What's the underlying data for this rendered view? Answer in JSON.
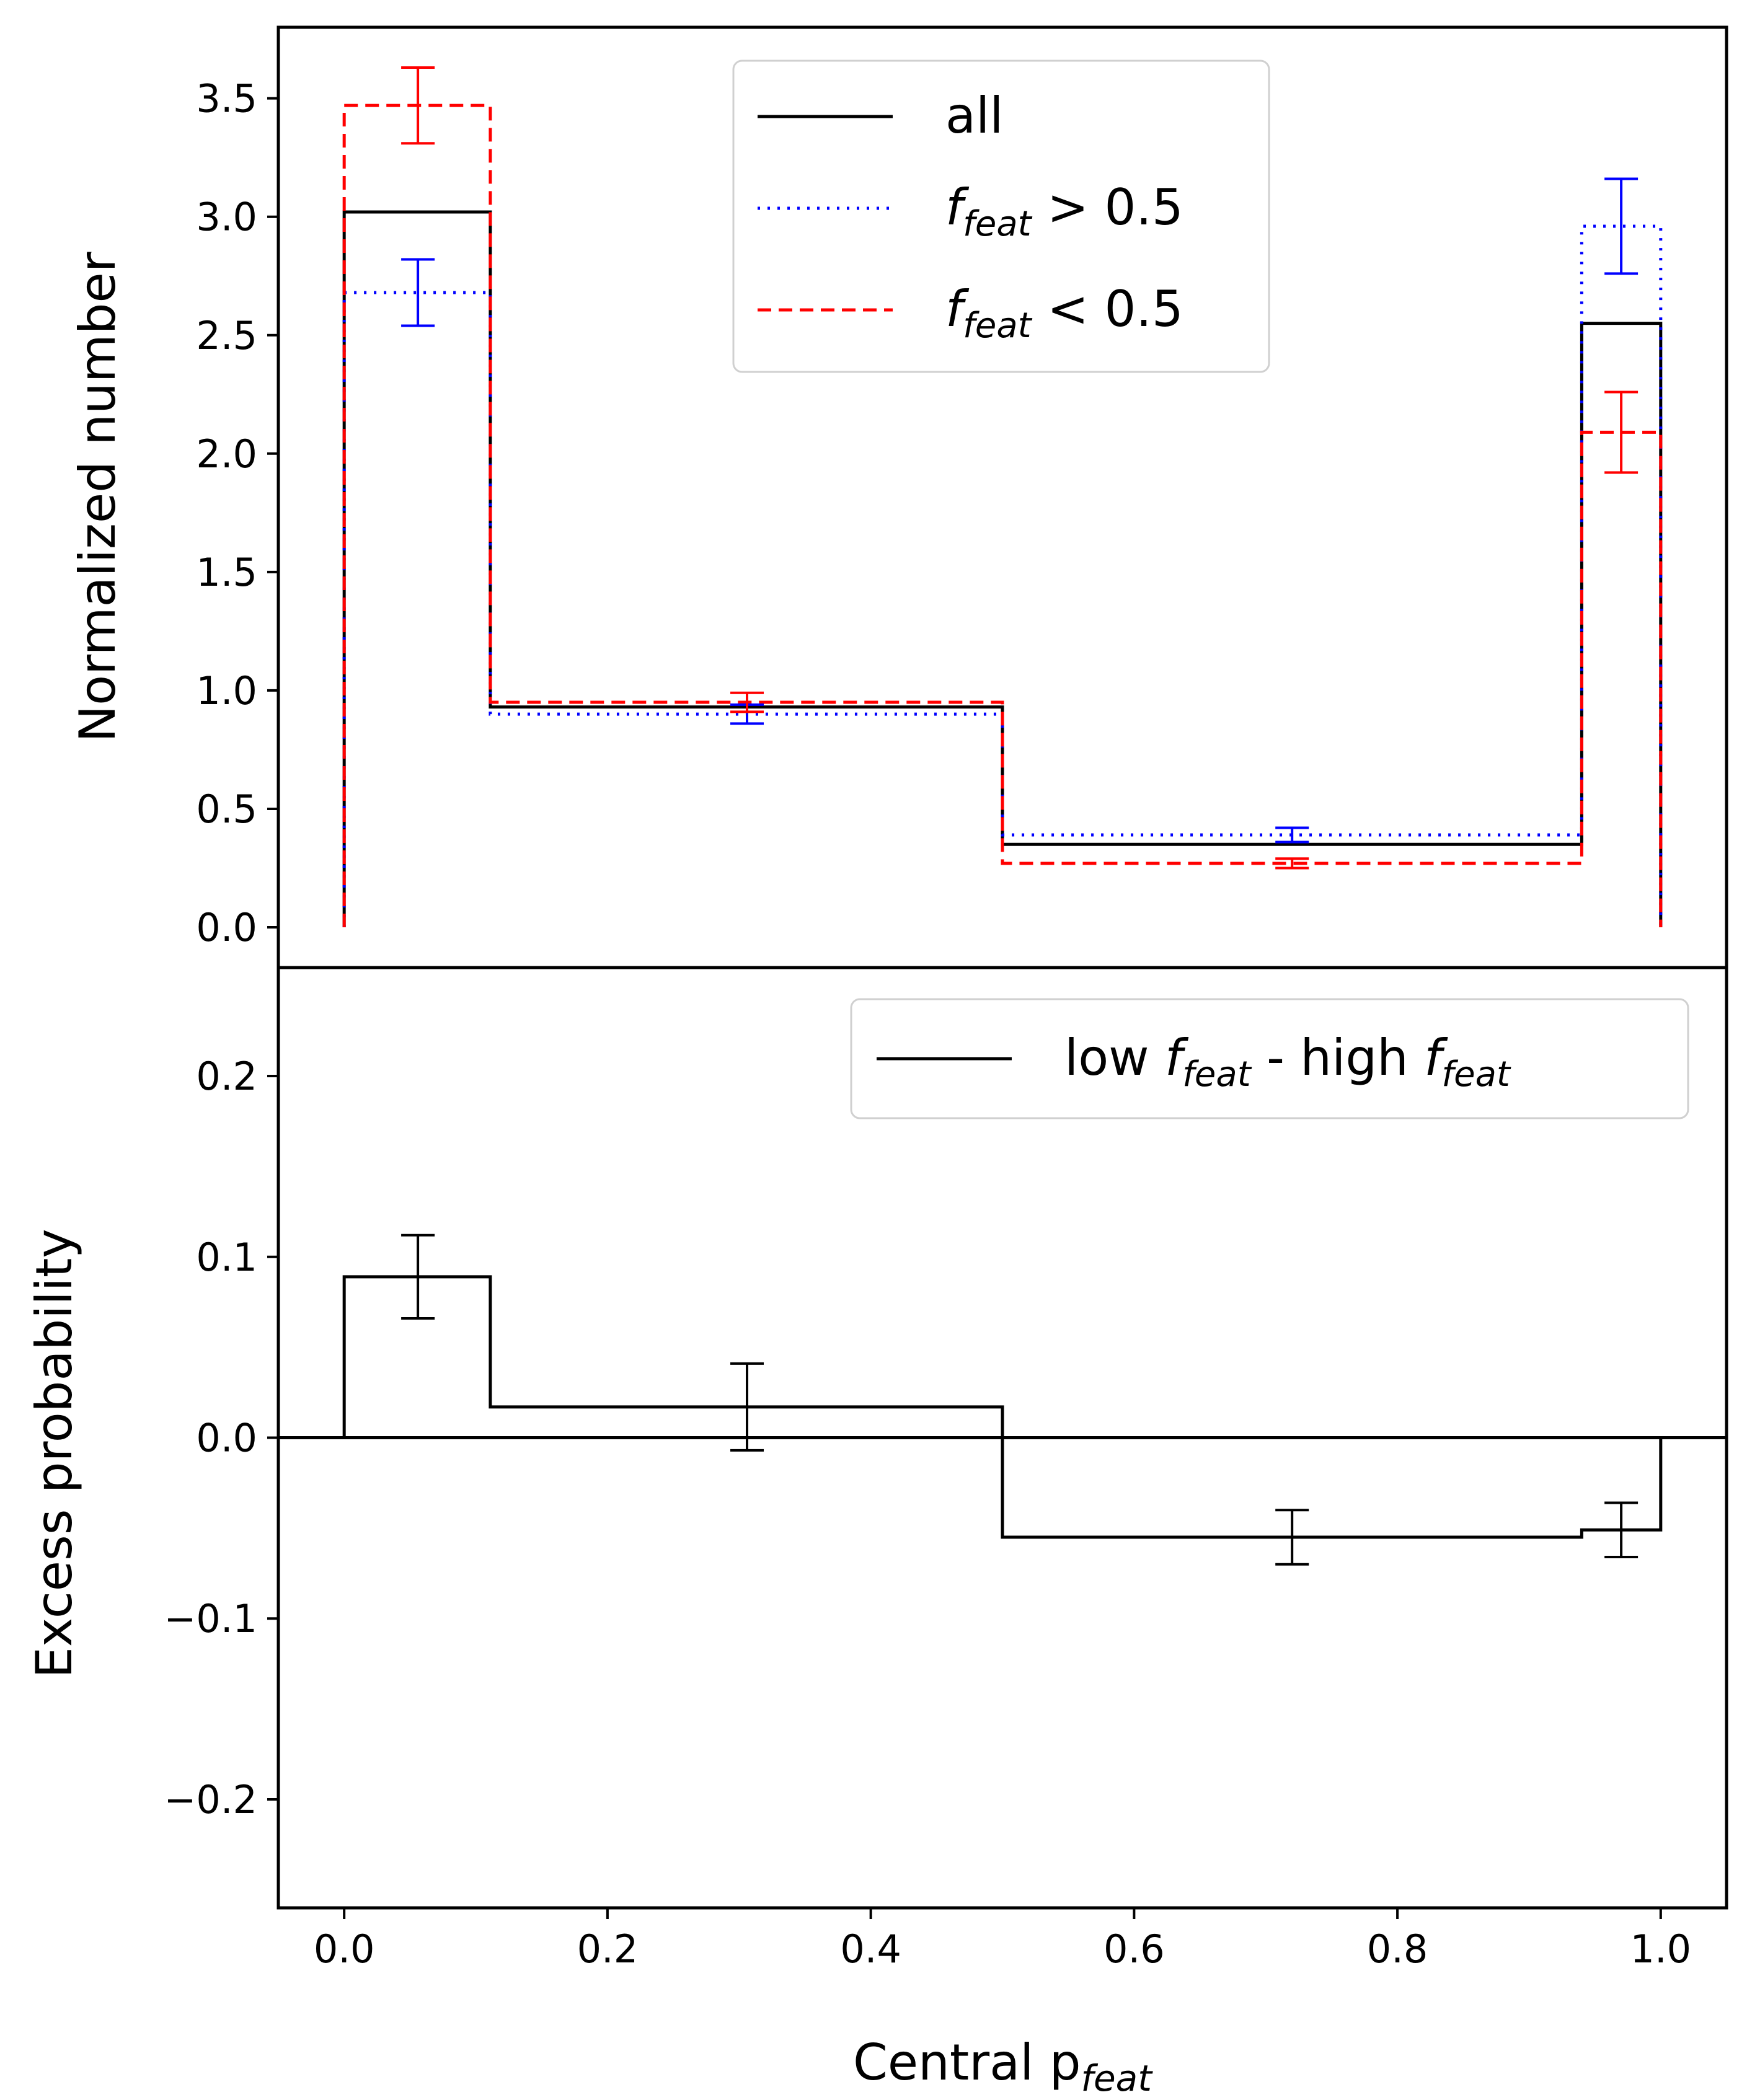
{
  "chart_data": [
    {
      "type": "step",
      "panel": "top",
      "ylabel": "Normalized number",
      "ylim": [
        -0.17,
        3.8
      ],
      "yticks": [
        "0.0",
        "0.5",
        "1.0",
        "1.5",
        "2.0",
        "2.5",
        "3.0",
        "3.5"
      ],
      "ytick_values": [
        0.0,
        0.5,
        1.0,
        1.5,
        2.0,
        2.5,
        3.0,
        3.5
      ],
      "bin_edges": [
        0.0,
        0.111,
        0.5,
        0.94,
        1.0
      ],
      "bin_centers": [
        0.056,
        0.306,
        0.72,
        0.97
      ],
      "legend_position": "upper-center",
      "series": [
        {
          "key": "all",
          "name": "all",
          "color": "#000000",
          "style": "solid",
          "values": [
            3.02,
            0.93,
            0.35,
            2.55
          ],
          "errors": null
        },
        {
          "key": "high",
          "name_base": "f",
          "name_sub": "feat",
          "name_tail": " > 0.5",
          "color": "#0000ff",
          "style": "dotted",
          "values": [
            2.68,
            0.9,
            0.39,
            2.96
          ],
          "errors": [
            0.14,
            0.04,
            0.03,
            0.2
          ]
        },
        {
          "key": "low",
          "name_base": "f",
          "name_sub": "feat",
          "name_tail": " < 0.5",
          "color": "#ff0000",
          "style": "dashed",
          "values": [
            3.47,
            0.95,
            0.27,
            2.09
          ],
          "errors": [
            0.16,
            0.04,
            0.02,
            0.17
          ]
        }
      ]
    },
    {
      "type": "step",
      "panel": "bottom",
      "ylabel": "Excess probability",
      "xlabel_base": "Central p",
      "xlabel_sub": "feat",
      "ylim": [
        -0.26,
        0.26
      ],
      "yticks": [
        "0.2",
        "0.1",
        "0.0",
        "−0.1",
        "−0.2"
      ],
      "ytick_values": [
        0.2,
        0.1,
        0.0,
        -0.1,
        -0.2
      ],
      "xticks": [
        "0.0",
        "0.2",
        "0.4",
        "0.6",
        "0.8",
        "1.0"
      ],
      "xtick_values": [
        0.0,
        0.2,
        0.4,
        0.6,
        0.8,
        1.0
      ],
      "xlim": [
        -0.05,
        1.05
      ],
      "bin_edges": [
        0.0,
        0.111,
        0.5,
        0.94,
        1.0
      ],
      "bin_centers": [
        0.056,
        0.306,
        0.72,
        0.97
      ],
      "zero_line": true,
      "legend_position": "upper-right",
      "series": [
        {
          "key": "diff",
          "name_pre": "low ",
          "name_base": "f",
          "name_sub": "feat",
          "name_mid": " - high ",
          "name_base2": "f",
          "name_sub2": "feat",
          "color": "#000000",
          "style": "solid",
          "values": [
            0.089,
            0.017,
            -0.055,
            -0.051
          ],
          "errors": [
            0.023,
            0.024,
            0.015,
            0.015
          ]
        }
      ]
    }
  ]
}
